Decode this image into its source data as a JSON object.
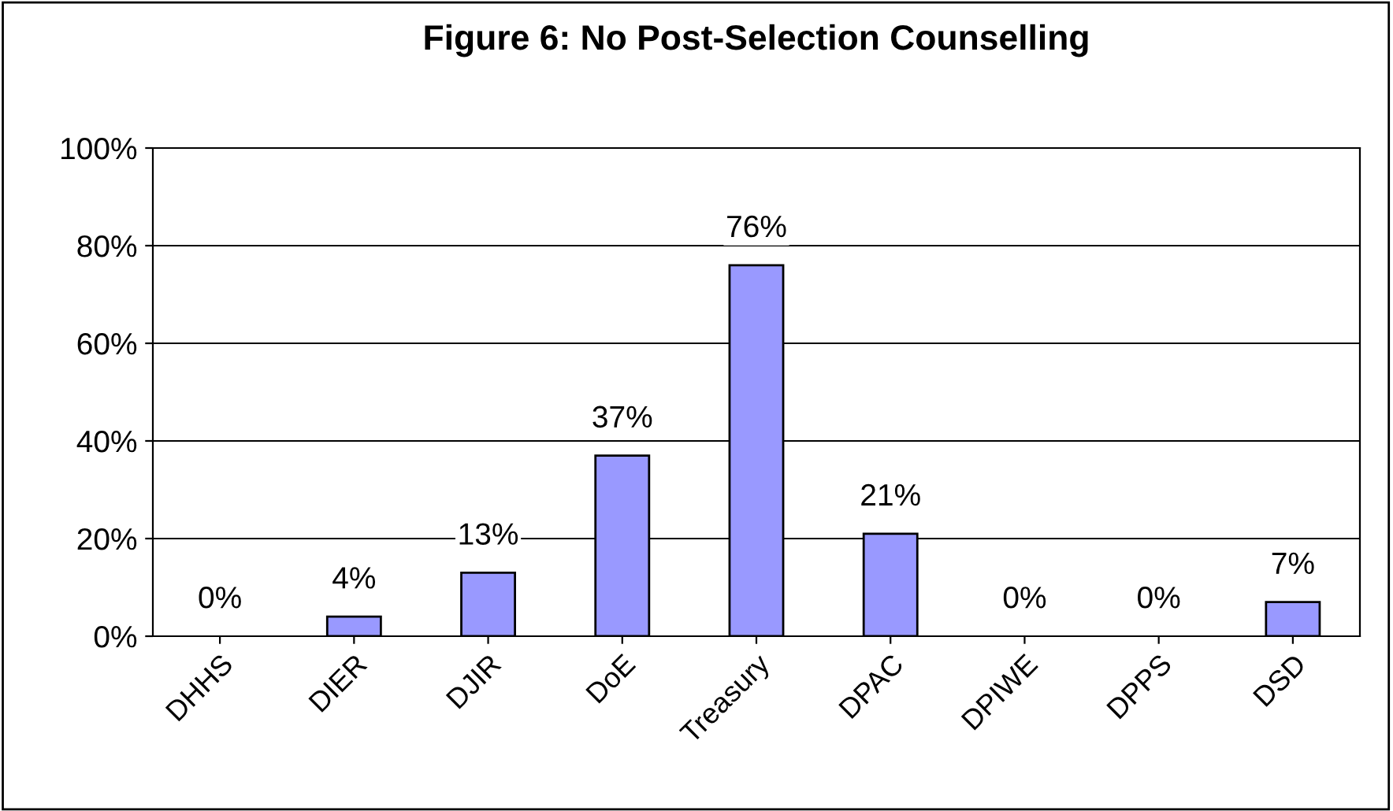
{
  "chart_data": {
    "type": "bar",
    "title": "Figure 6: No Post-Selection Counselling",
    "categories": [
      "DHHS",
      "DIER",
      "DJIR",
      "DoE",
      "Treasury",
      "DPAC",
      "DPIWE",
      "DPPS",
      "DSD"
    ],
    "values": [
      0,
      4,
      13,
      37,
      76,
      21,
      0,
      0,
      7
    ],
    "value_labels": [
      "0%",
      "4%",
      "13%",
      "37%",
      "76%",
      "21%",
      "0%",
      "0%",
      "7%"
    ],
    "color": "#9999ff",
    "ylim": [
      0,
      100
    ],
    "yticks": [
      {
        "value": 0,
        "label": "0%"
      },
      {
        "value": 20,
        "label": "20%"
      },
      {
        "value": 40,
        "label": "40%"
      },
      {
        "value": 60,
        "label": "60%"
      },
      {
        "value": 80,
        "label": "80%"
      },
      {
        "value": 100,
        "label": "100%"
      }
    ],
    "grid": "y",
    "legend": false
  }
}
